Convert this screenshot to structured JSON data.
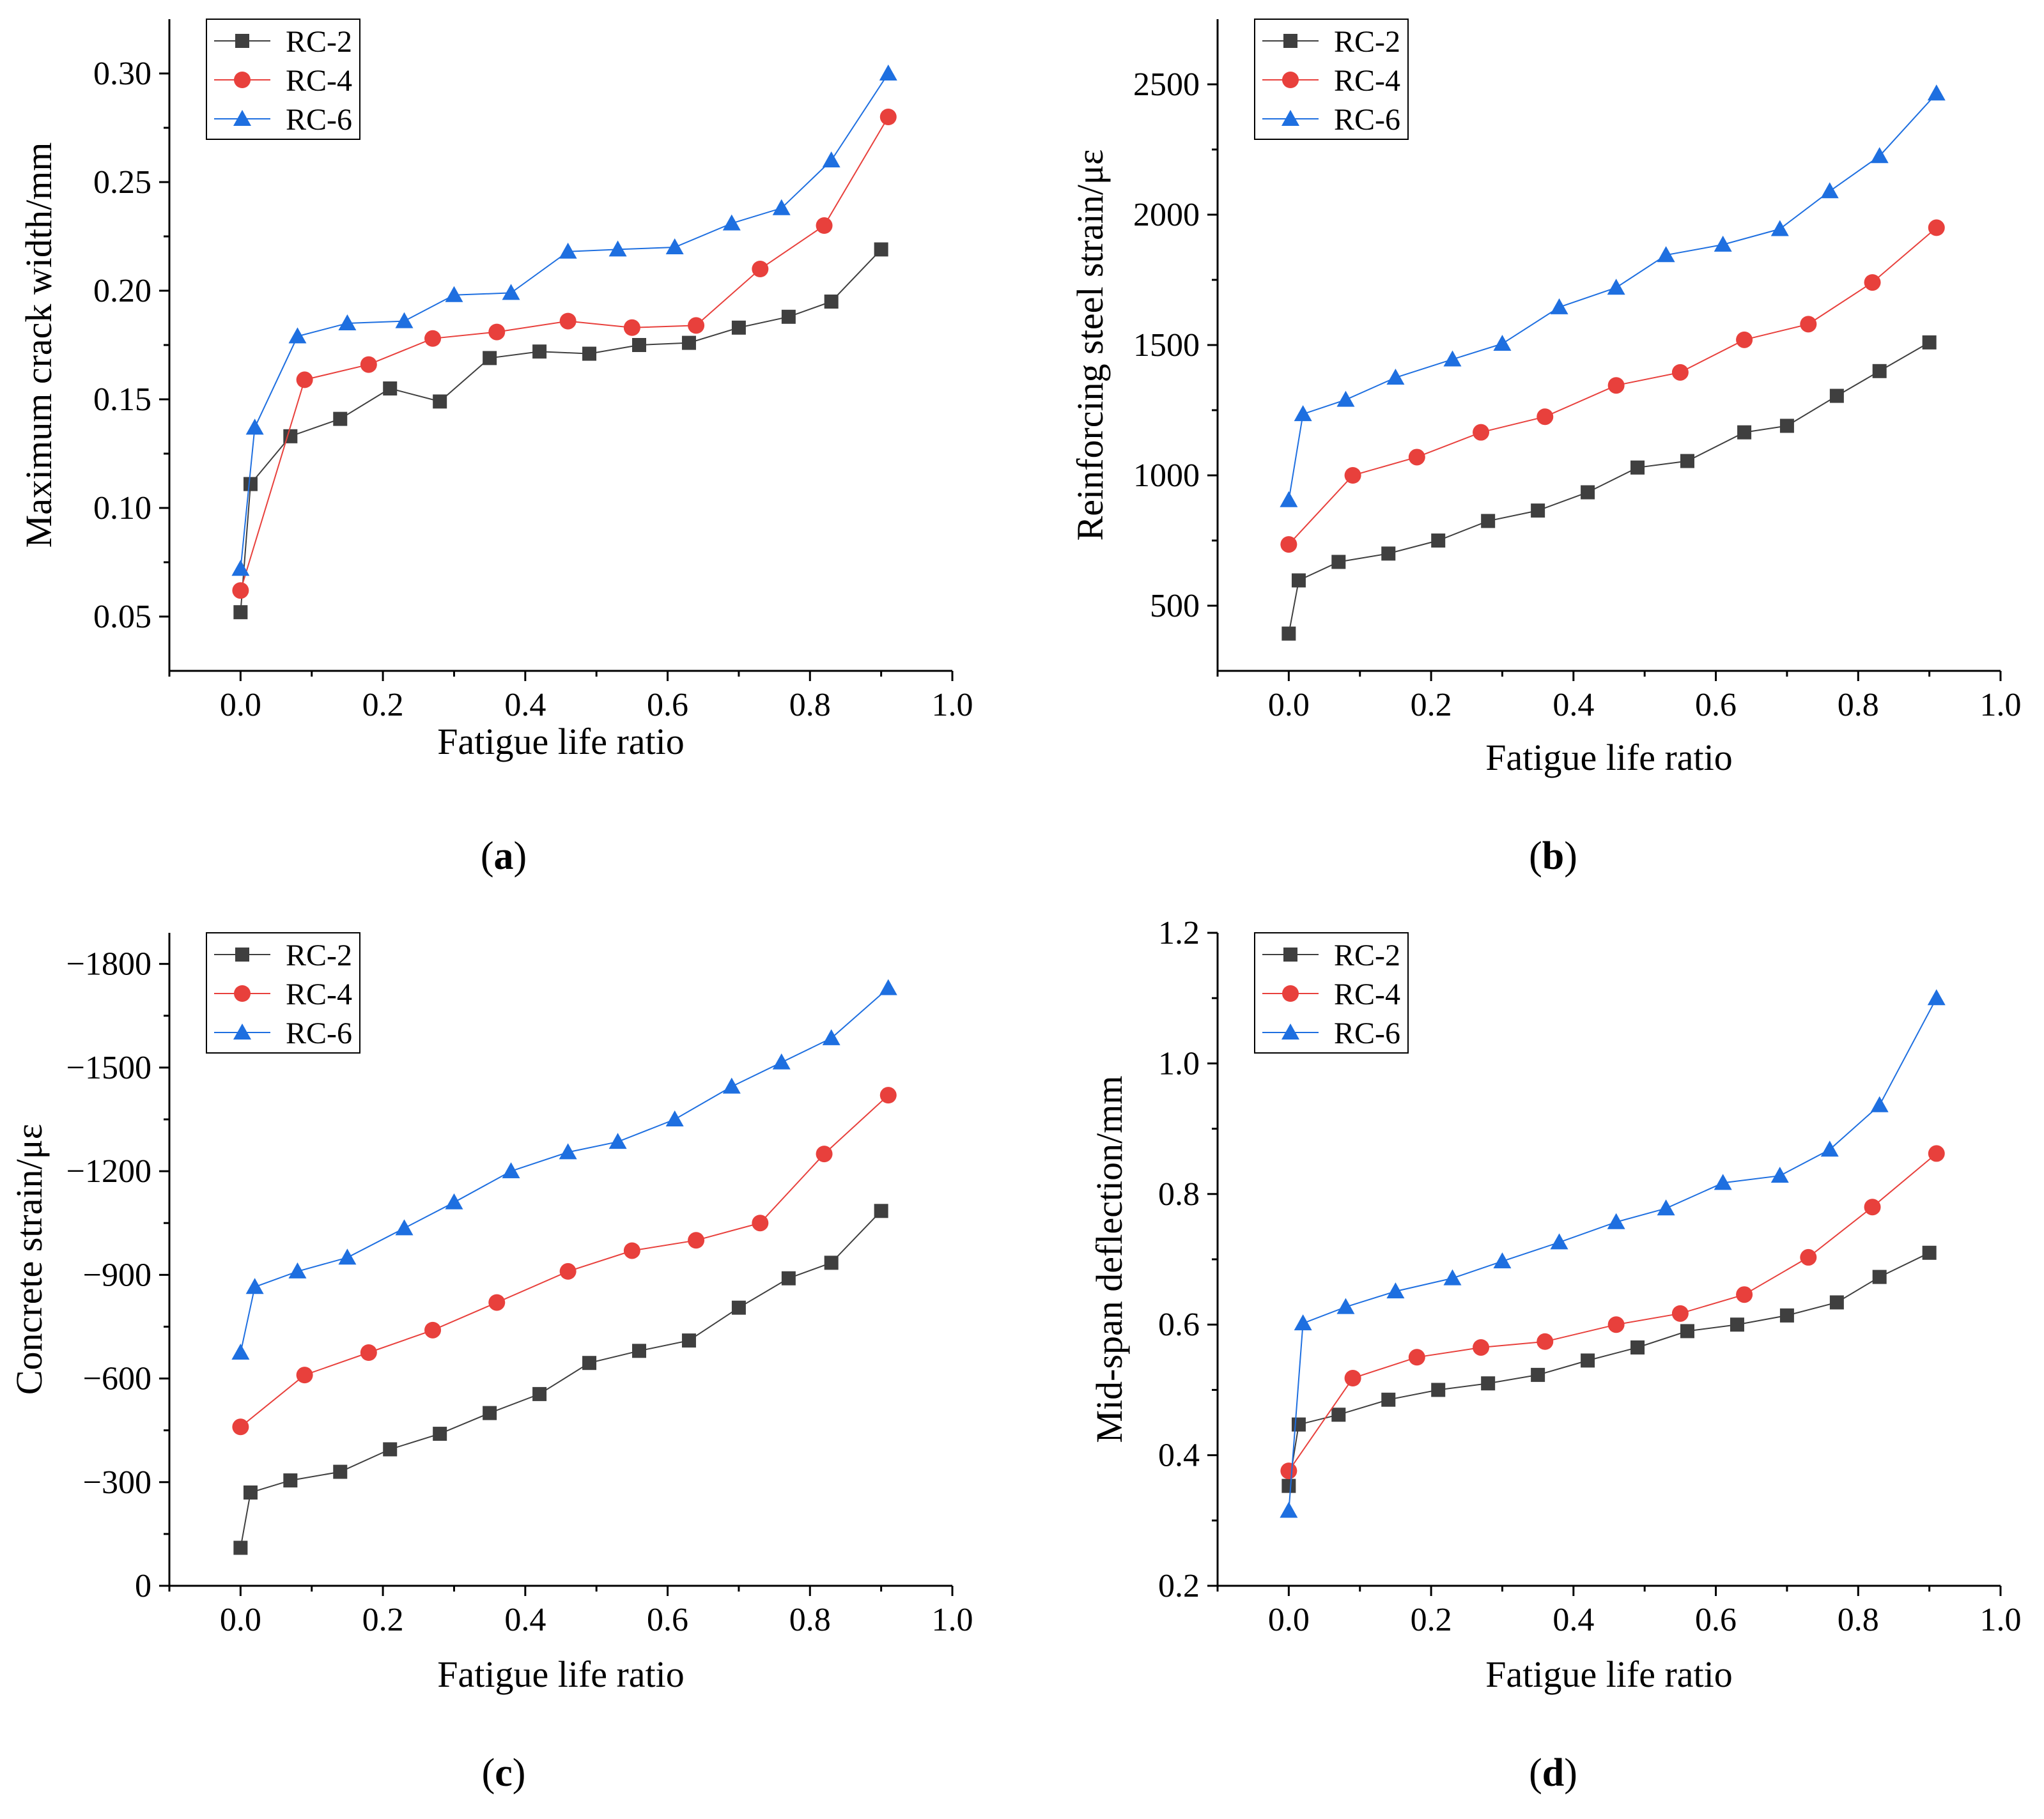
{
  "figure": {
    "legend_labels": [
      "RC-2",
      "RC-4",
      "RC-6"
    ]
  },
  "series_style": [
    {
      "name": "RC-2",
      "color": "#3f3f3f",
      "marker": "square"
    },
    {
      "name": "RC-4",
      "color": "#e8403c",
      "marker": "circle"
    },
    {
      "name": "RC-6",
      "color": "#1e6fe0",
      "marker": "triangle"
    }
  ],
  "chart_data": [
    {
      "type": "line",
      "panel_label": "(a)",
      "title": "",
      "xlabel": "Fatigue life ratio",
      "ylabel": "Maximum crack width/mm",
      "xlim": [
        -0.1,
        1.0
      ],
      "ylim": [
        0.025,
        0.325
      ],
      "xticks": [
        "0.0",
        "0.2",
        "0.4",
        "0.6",
        "0.8",
        "1.0"
      ],
      "xtick_values": [
        0.0,
        0.2,
        0.4,
        0.6,
        0.8,
        1.0
      ],
      "yticks": [
        "0.05",
        "0.10",
        "0.15",
        "0.20",
        "0.25",
        "0.30"
      ],
      "ytick_values": [
        0.05,
        0.1,
        0.15,
        0.2,
        0.25,
        0.3
      ],
      "legend_position": "top-left",
      "series": [
        {
          "name": "RC-2",
          "x": [
            0.0,
            0.014,
            0.07,
            0.14,
            0.21,
            0.28,
            0.35,
            0.42,
            0.49,
            0.56,
            0.63,
            0.7,
            0.77,
            0.83,
            0.9
          ],
          "y": [
            0.052,
            0.111,
            0.133,
            0.141,
            0.155,
            0.149,
            0.169,
            0.172,
            0.171,
            0.175,
            0.176,
            0.183,
            0.188,
            0.195,
            0.219
          ]
        },
        {
          "name": "RC-4",
          "x": [
            0.0,
            0.09,
            0.18,
            0.27,
            0.36,
            0.46,
            0.55,
            0.64,
            0.73,
            0.82,
            0.91
          ],
          "y": [
            0.062,
            0.159,
            0.166,
            0.178,
            0.181,
            0.186,
            0.183,
            0.184,
            0.21,
            0.23,
            0.28
          ]
        },
        {
          "name": "RC-6",
          "x": [
            0.0,
            0.02,
            0.08,
            0.15,
            0.23,
            0.3,
            0.38,
            0.46,
            0.53,
            0.61,
            0.69,
            0.76,
            0.83,
            0.91
          ],
          "y": [
            0.072,
            0.137,
            0.179,
            0.185,
            0.186,
            0.198,
            0.199,
            0.218,
            0.219,
            0.22,
            0.231,
            0.238,
            0.26,
            0.3
          ]
        }
      ]
    },
    {
      "type": "line",
      "panel_label": "(b)",
      "title": "",
      "xlabel": "Fatigue life ratio",
      "ylabel": "Reinforcing steel strain/με",
      "xlim": [
        -0.1,
        1.0
      ],
      "ylim": [
        250,
        2750
      ],
      "xticks": [
        "0.0",
        "0.2",
        "0.4",
        "0.6",
        "0.8",
        "1.0"
      ],
      "xtick_values": [
        0.0,
        0.2,
        0.4,
        0.6,
        0.8,
        1.0
      ],
      "yticks": [
        "500",
        "1000",
        "1500",
        "2000",
        "2500"
      ],
      "ytick_values": [
        500,
        1000,
        1500,
        2000,
        2500
      ],
      "legend_position": "top-left",
      "series": [
        {
          "name": "RC-2",
          "x": [
            0.0,
            0.014,
            0.07,
            0.14,
            0.21,
            0.28,
            0.35,
            0.42,
            0.49,
            0.56,
            0.64,
            0.7,
            0.77,
            0.83,
            0.9
          ],
          "y": [
            393,
            597,
            668,
            700,
            750,
            825,
            865,
            935,
            1030,
            1055,
            1165,
            1190,
            1305,
            1400,
            1510
          ]
        },
        {
          "name": "RC-4",
          "x": [
            0.0,
            0.09,
            0.18,
            0.27,
            0.36,
            0.46,
            0.55,
            0.64,
            0.73,
            0.82,
            0.91
          ],
          "y": [
            735,
            1000,
            1070,
            1165,
            1225,
            1345,
            1395,
            1520,
            1580,
            1740,
            1950
          ]
        },
        {
          "name": "RC-6",
          "x": [
            0.0,
            0.02,
            0.08,
            0.15,
            0.23,
            0.3,
            0.38,
            0.46,
            0.53,
            0.61,
            0.69,
            0.76,
            0.83,
            0.91
          ],
          "y": [
            905,
            1235,
            1290,
            1375,
            1445,
            1505,
            1645,
            1720,
            1845,
            1885,
            1945,
            2090,
            2225,
            2465
          ]
        }
      ]
    },
    {
      "type": "line",
      "panel_label": "(c)",
      "title": "",
      "xlabel": "Fatigue life ratio",
      "ylabel": "Concrete strain/με",
      "xlim": [
        -0.1,
        1.0
      ],
      "ylim": [
        0,
        -1890
      ],
      "xticks": [
        "0.0",
        "0.2",
        "0.4",
        "0.6",
        "0.8",
        "1.0"
      ],
      "xtick_values": [
        0.0,
        0.2,
        0.4,
        0.6,
        0.8,
        1.0
      ],
      "yticks": [
        "0",
        "−300",
        "−600",
        "−900",
        "−1200",
        "−1500",
        "−1800"
      ],
      "ytick_values": [
        0,
        -300,
        -600,
        -900,
        -1200,
        -1500,
        -1800
      ],
      "legend_position": "top-left",
      "series": [
        {
          "name": "RC-2",
          "x": [
            0.0,
            0.014,
            0.07,
            0.14,
            0.21,
            0.28,
            0.35,
            0.42,
            0.49,
            0.56,
            0.63,
            0.7,
            0.77,
            0.83,
            0.9
          ],
          "y": [
            -110,
            -270,
            -305,
            -330,
            -395,
            -440,
            -500,
            -555,
            -645,
            -680,
            -710,
            -805,
            -890,
            -935,
            -1085
          ]
        },
        {
          "name": "RC-4",
          "x": [
            0.0,
            0.09,
            0.18,
            0.27,
            0.36,
            0.46,
            0.55,
            0.64,
            0.73,
            0.82,
            0.91
          ],
          "y": [
            -460,
            -610,
            -675,
            -740,
            -820,
            -910,
            -970,
            -1000,
            -1050,
            -1250,
            -1420
          ]
        },
        {
          "name": "RC-6",
          "x": [
            0.0,
            0.02,
            0.08,
            0.15,
            0.23,
            0.3,
            0.38,
            0.46,
            0.53,
            0.61,
            0.69,
            0.76,
            0.83,
            0.91
          ],
          "y": [
            -675,
            -865,
            -910,
            -950,
            -1035,
            -1110,
            -1200,
            -1255,
            -1285,
            -1350,
            -1445,
            -1515,
            -1585,
            -1730
          ]
        }
      ]
    },
    {
      "type": "line",
      "panel_label": "(d)",
      "title": "",
      "xlabel": "Fatigue life ratio",
      "ylabel": "Mid-span deflection/mm",
      "xlim": [
        -0.1,
        1.0
      ],
      "ylim": [
        0.2,
        1.2
      ],
      "xticks": [
        "0.0",
        "0.2",
        "0.4",
        "0.6",
        "0.8",
        "1.0"
      ],
      "xtick_values": [
        0.0,
        0.2,
        0.4,
        0.6,
        0.8,
        1.0
      ],
      "yticks": [
        "0.2",
        "0.4",
        "0.6",
        "0.8",
        "1.0",
        "1.2"
      ],
      "ytick_values": [
        0.2,
        0.4,
        0.6,
        0.8,
        1.0,
        1.2
      ],
      "legend_position": "top-left",
      "series": [
        {
          "name": "RC-2",
          "x": [
            0.0,
            0.014,
            0.07,
            0.14,
            0.21,
            0.28,
            0.35,
            0.42,
            0.49,
            0.56,
            0.63,
            0.7,
            0.77,
            0.83,
            0.9
          ],
          "y": [
            0.353,
            0.447,
            0.462,
            0.485,
            0.5,
            0.51,
            0.523,
            0.545,
            0.565,
            0.59,
            0.6,
            0.614,
            0.634,
            0.673,
            0.71
          ]
        },
        {
          "name": "RC-4",
          "x": [
            0.0,
            0.09,
            0.18,
            0.27,
            0.36,
            0.46,
            0.55,
            0.64,
            0.73,
            0.82,
            0.91
          ],
          "y": [
            0.376,
            0.518,
            0.55,
            0.565,
            0.574,
            0.6,
            0.617,
            0.646,
            0.703,
            0.78,
            0.862
          ]
        },
        {
          "name": "RC-6",
          "x": [
            0.0,
            0.02,
            0.08,
            0.15,
            0.23,
            0.3,
            0.38,
            0.46,
            0.53,
            0.61,
            0.69,
            0.76,
            0.83,
            0.91
          ],
          "y": [
            0.315,
            0.602,
            0.627,
            0.651,
            0.671,
            0.697,
            0.726,
            0.757,
            0.778,
            0.817,
            0.828,
            0.868,
            0.936,
            1.1
          ]
        }
      ]
    }
  ]
}
